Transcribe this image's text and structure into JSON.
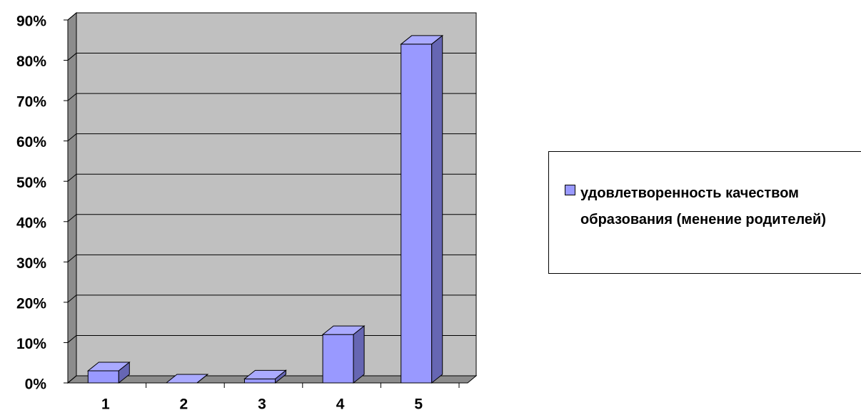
{
  "chart_data": {
    "type": "bar3d",
    "categories": [
      "1",
      "2",
      "3",
      "4",
      "5"
    ],
    "series": [
      {
        "name": "удовлетворенность качеством образования (менение родителей)",
        "color": "#9999ff",
        "values": [
          3,
          0,
          1,
          12,
          84
        ]
      }
    ],
    "ylim": [
      0,
      90
    ],
    "yticks": [
      {
        "value": 0,
        "label": "0%"
      },
      {
        "value": 10,
        "label": "10%"
      },
      {
        "value": 20,
        "label": "20%"
      },
      {
        "value": 30,
        "label": "30%"
      },
      {
        "value": 40,
        "label": "40%"
      },
      {
        "value": 50,
        "label": "50%"
      },
      {
        "value": 60,
        "label": "60%"
      },
      {
        "value": 70,
        "label": "70%"
      },
      {
        "value": 80,
        "label": "80%"
      },
      {
        "value": 90,
        "label": "90%"
      }
    ],
    "grid": true,
    "legend": "right"
  }
}
